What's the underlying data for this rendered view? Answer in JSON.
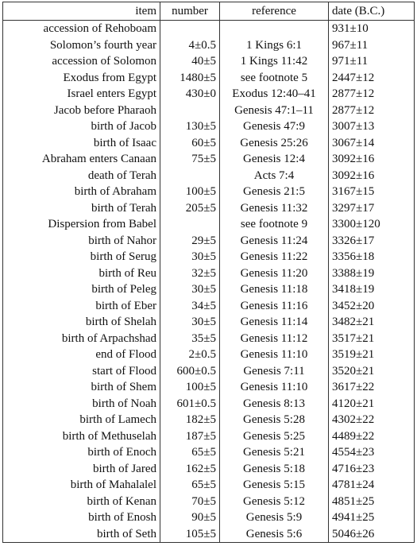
{
  "table": {
    "header": [
      "item",
      "number",
      "reference",
      "date (B.C.)"
    ],
    "rows": [
      [
        "accession of Rehoboam",
        null,
        null,
        "931±10"
      ],
      [
        "Solomon’s fourth year",
        "4±0.5",
        "1 Kings 6:1",
        "967±11"
      ],
      [
        "accession of Solomon",
        "40±5",
        "1 Kings 11:42",
        "971±11"
      ],
      [
        "Exodus from Egypt",
        "1480±5",
        "see footnote 5",
        "2447±12"
      ],
      [
        "Israel enters Egypt",
        "430±0",
        "Exodus 12:40–41",
        "2877±12"
      ],
      [
        "Jacob before Pharaoh",
        null,
        "Genesis 47:1–11",
        "2877±12"
      ],
      [
        "birth of Jacob",
        "130±5",
        "Genesis 47:9",
        "3007±13"
      ],
      [
        "birth of Isaac",
        "60±5",
        "Genesis 25:26",
        "3067±14"
      ],
      [
        "Abraham enters Canaan",
        "75±5",
        "Genesis 12:4",
        "3092±16"
      ],
      [
        "death of Terah",
        null,
        "Acts 7:4",
        "3092±16"
      ],
      [
        "birth of Abraham",
        "100±5",
        "Genesis 21:5",
        "3167±15"
      ],
      [
        "birth of Terah",
        "205±5",
        "Genesis 11:32",
        "3297±17"
      ],
      [
        "Dispersion from Babel",
        null,
        "see footnote 9",
        "3300±120"
      ],
      [
        "birth of Nahor",
        "29±5",
        "Genesis 11:24",
        "3326±17"
      ],
      [
        "birth of Serug",
        "30±5",
        "Genesis 11:22",
        "3356±18"
      ],
      [
        "birth of Reu",
        "32±5",
        "Genesis 11:20",
        "3388±19"
      ],
      [
        "birth of Peleg",
        "30±5",
        "Genesis 11:18",
        "3418±19"
      ],
      [
        "birth of Eber",
        "34±5",
        "Genesis 11:16",
        "3452±20"
      ],
      [
        "birth of Shelah",
        "30±5",
        "Genesis 11:14",
        "3482±21"
      ],
      [
        "birth of Arpachshad",
        "35±5",
        "Genesis 11:12",
        "3517±21"
      ],
      [
        "end of Flood",
        "2±0.5",
        "Genesis 11:10",
        "3519±21"
      ],
      [
        "start of Flood",
        "600±0.5",
        "Genesis 7:11",
        "3520±21"
      ],
      [
        "birth of Shem",
        "100±5",
        "Genesis 11:10",
        "3617±22"
      ],
      [
        "birth of Noah",
        "601±0.5",
        "Genesis 8:13",
        "4120±21"
      ],
      [
        "birth of Lamech",
        "182±5",
        "Genesis 5:28",
        "4302±22"
      ],
      [
        "birth of Methuselah",
        "187±5",
        "Genesis 5:25",
        "4489±22"
      ],
      [
        "birth of Enoch",
        "65±5",
        "Genesis 5:21",
        "4554±23"
      ],
      [
        "birth of Jared",
        "162±5",
        "Genesis 5:18",
        "4716±23"
      ],
      [
        "birth of Mahalalel",
        "65±5",
        "Genesis 5:15",
        "4781±24"
      ],
      [
        "birth of Kenan",
        "70±5",
        "Genesis 5:12",
        "4851±25"
      ],
      [
        "birth of Enosh",
        "90±5",
        "Genesis 5:9",
        "4941±25"
      ],
      [
        "birth of Seth",
        "105±5",
        "Genesis 5:6",
        "5046±26"
      ]
    ]
  }
}
